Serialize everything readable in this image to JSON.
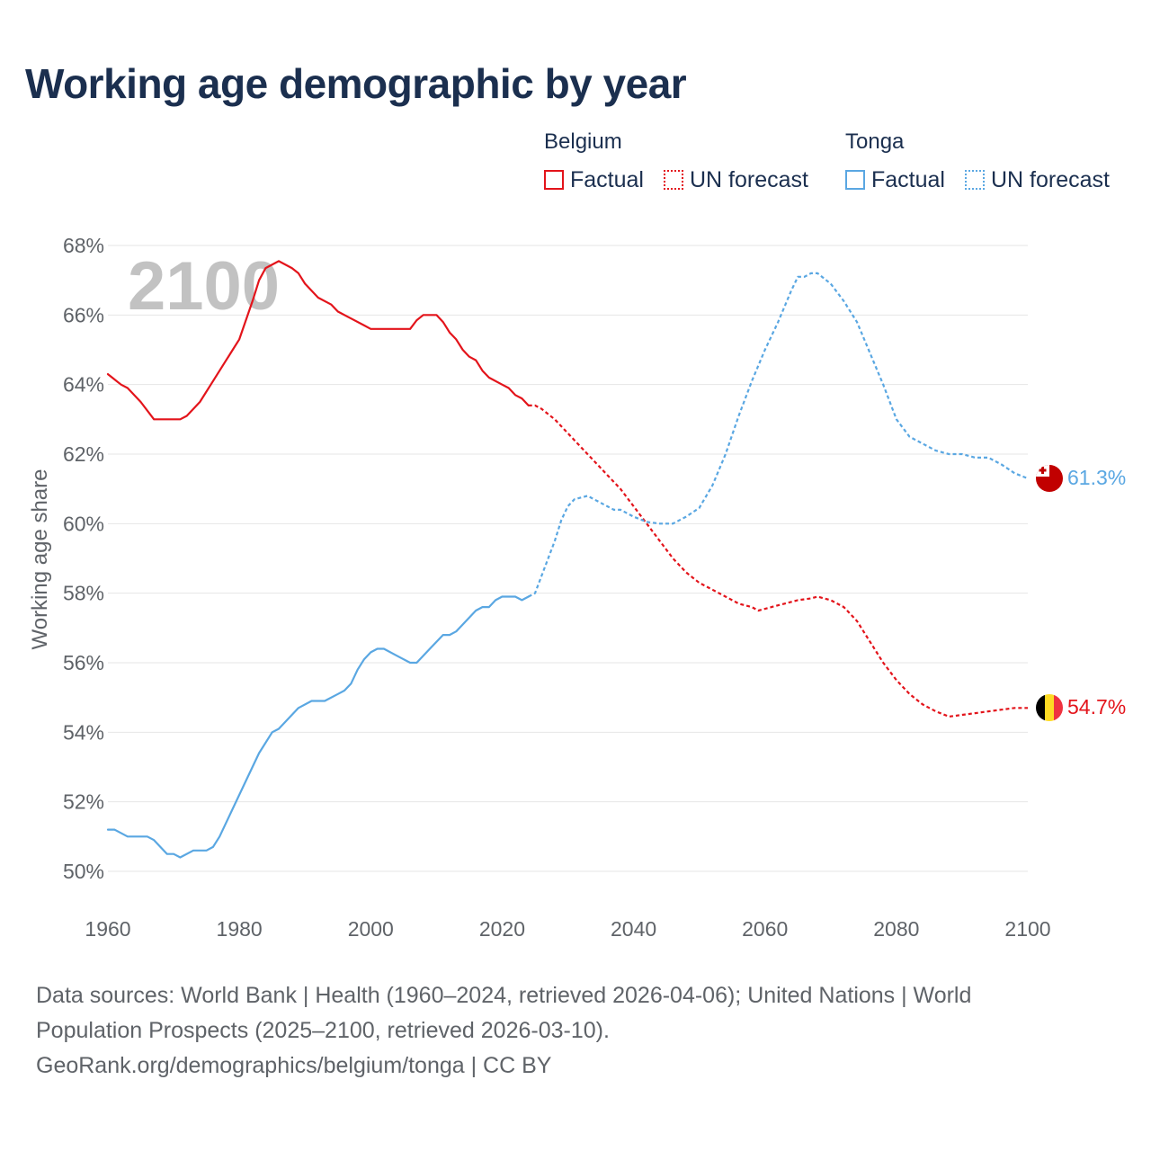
{
  "title": "Working age demographic by year",
  "legend": {
    "belgium": {
      "name": "Belgium",
      "factual": "Factual",
      "forecast": "UN forecast"
    },
    "tonga": {
      "name": "Tonga",
      "factual": "Factual",
      "forecast": "UN forecast"
    }
  },
  "footer": {
    "sources": "Data sources: World Bank | Health (1960–2024, retrieved 2026-04-06); United Nations | World Population Prospects (2025–2100, retrieved 2026-03-10).",
    "link": "GeoRank.org/demographics/belgium/tonga | CC BY"
  },
  "chart_data": {
    "type": "line",
    "title": "Working age demographic by year",
    "ylabel": "Working age share",
    "xlabel": "",
    "year_watermark": "2100",
    "xlim": [
      1960,
      2100
    ],
    "ylim": [
      50,
      68
    ],
    "x_ticks": [
      1960,
      1980,
      2000,
      2020,
      2040,
      2060,
      2080,
      2100
    ],
    "y_ticks": [
      50,
      52,
      54,
      56,
      58,
      60,
      62,
      64,
      66,
      68
    ],
    "y_tick_labels": [
      "50%",
      "52%",
      "54%",
      "56%",
      "58%",
      "60%",
      "62%",
      "64%",
      "66%",
      "68%"
    ],
    "factual_end_year": 2024,
    "series": [
      {
        "name": "Belgium",
        "color": "#e3141b",
        "end_label": "54.7%",
        "flag": "belgium-flag",
        "points": [
          [
            1960,
            64.3
          ],
          [
            1962,
            64.0
          ],
          [
            1963,
            63.9
          ],
          [
            1965,
            63.5
          ],
          [
            1967,
            63.0
          ],
          [
            1969,
            63.0
          ],
          [
            1971,
            63.0
          ],
          [
            1972,
            63.1
          ],
          [
            1974,
            63.5
          ],
          [
            1976,
            64.1
          ],
          [
            1978,
            64.7
          ],
          [
            1980,
            65.3
          ],
          [
            1982,
            66.4
          ],
          [
            1983,
            67.0
          ],
          [
            1984,
            67.35
          ],
          [
            1986,
            67.55
          ],
          [
            1988,
            67.35
          ],
          [
            1989,
            67.2
          ],
          [
            1990,
            66.9
          ],
          [
            1991,
            66.7
          ],
          [
            1992,
            66.5
          ],
          [
            1994,
            66.3
          ],
          [
            1995,
            66.1
          ],
          [
            1997,
            65.9
          ],
          [
            1999,
            65.7
          ],
          [
            2000,
            65.6
          ],
          [
            2002,
            65.6
          ],
          [
            2004,
            65.6
          ],
          [
            2006,
            65.6
          ],
          [
            2007,
            65.85
          ],
          [
            2008,
            66.0
          ],
          [
            2010,
            66.0
          ],
          [
            2011,
            65.8
          ],
          [
            2012,
            65.5
          ],
          [
            2013,
            65.3
          ],
          [
            2014,
            65.0
          ],
          [
            2015,
            64.8
          ],
          [
            2016,
            64.7
          ],
          [
            2017,
            64.4
          ],
          [
            2018,
            64.2
          ],
          [
            2020,
            64.0
          ],
          [
            2021,
            63.9
          ],
          [
            2022,
            63.7
          ],
          [
            2023,
            63.6
          ],
          [
            2024,
            63.4
          ],
          [
            2025,
            63.4
          ],
          [
            2026,
            63.3
          ],
          [
            2028,
            63.0
          ],
          [
            2030,
            62.6
          ],
          [
            2032,
            62.2
          ],
          [
            2034,
            61.8
          ],
          [
            2036,
            61.4
          ],
          [
            2038,
            61.0
          ],
          [
            2040,
            60.5
          ],
          [
            2042,
            60.0
          ],
          [
            2044,
            59.5
          ],
          [
            2046,
            59.0
          ],
          [
            2048,
            58.6
          ],
          [
            2050,
            58.3
          ],
          [
            2052,
            58.1
          ],
          [
            2054,
            57.9
          ],
          [
            2056,
            57.7
          ],
          [
            2058,
            57.6
          ],
          [
            2059,
            57.5
          ],
          [
            2061,
            57.6
          ],
          [
            2063,
            57.7
          ],
          [
            2065,
            57.8
          ],
          [
            2067,
            57.85
          ],
          [
            2068,
            57.9
          ],
          [
            2070,
            57.8
          ],
          [
            2072,
            57.6
          ],
          [
            2074,
            57.2
          ],
          [
            2076,
            56.6
          ],
          [
            2078,
            56.0
          ],
          [
            2080,
            55.5
          ],
          [
            2082,
            55.1
          ],
          [
            2084,
            54.8
          ],
          [
            2086,
            54.6
          ],
          [
            2088,
            54.45
          ],
          [
            2090,
            54.5
          ],
          [
            2092,
            54.55
          ],
          [
            2094,
            54.6
          ],
          [
            2096,
            54.65
          ],
          [
            2098,
            54.7
          ],
          [
            2100,
            54.7
          ]
        ]
      },
      {
        "name": "Tonga",
        "color": "#5aa7e2",
        "end_label": "61.3%",
        "flag": "tonga-flag",
        "points": [
          [
            1960,
            51.2
          ],
          [
            1961,
            51.2
          ],
          [
            1963,
            51.0
          ],
          [
            1965,
            51.0
          ],
          [
            1966,
            51.0
          ],
          [
            1967,
            50.9
          ],
          [
            1969,
            50.5
          ],
          [
            1970,
            50.5
          ],
          [
            1971,
            50.4
          ],
          [
            1973,
            50.6
          ],
          [
            1975,
            50.6
          ],
          [
            1976,
            50.7
          ],
          [
            1977,
            51.0
          ],
          [
            1979,
            51.8
          ],
          [
            1981,
            52.6
          ],
          [
            1983,
            53.4
          ],
          [
            1985,
            54.0
          ],
          [
            1986,
            54.1
          ],
          [
            1988,
            54.5
          ],
          [
            1989,
            54.7
          ],
          [
            1991,
            54.9
          ],
          [
            1993,
            54.9
          ],
          [
            1995,
            55.1
          ],
          [
            1996,
            55.2
          ],
          [
            1997,
            55.4
          ],
          [
            1998,
            55.8
          ],
          [
            1999,
            56.1
          ],
          [
            2000,
            56.3
          ],
          [
            2001,
            56.4
          ],
          [
            2002,
            56.4
          ],
          [
            2004,
            56.2
          ],
          [
            2006,
            56.0
          ],
          [
            2007,
            56.0
          ],
          [
            2009,
            56.4
          ],
          [
            2011,
            56.8
          ],
          [
            2012,
            56.8
          ],
          [
            2013,
            56.9
          ],
          [
            2015,
            57.3
          ],
          [
            2016,
            57.5
          ],
          [
            2017,
            57.6
          ],
          [
            2018,
            57.6
          ],
          [
            2019,
            57.8
          ],
          [
            2020,
            57.9
          ],
          [
            2022,
            57.9
          ],
          [
            2023,
            57.8
          ],
          [
            2024,
            57.9
          ],
          [
            2025,
            58.0
          ],
          [
            2026,
            58.5
          ],
          [
            2027,
            59.0
          ],
          [
            2028,
            59.5
          ],
          [
            2029,
            60.1
          ],
          [
            2030,
            60.5
          ],
          [
            2031,
            60.7
          ],
          [
            2032,
            60.75
          ],
          [
            2033,
            60.8
          ],
          [
            2034,
            60.7
          ],
          [
            2036,
            60.5
          ],
          [
            2037,
            60.4
          ],
          [
            2038,
            60.4
          ],
          [
            2040,
            60.2
          ],
          [
            2042,
            60.05
          ],
          [
            2044,
            60.0
          ],
          [
            2046,
            60.0
          ],
          [
            2048,
            60.2
          ],
          [
            2050,
            60.45
          ],
          [
            2052,
            61.1
          ],
          [
            2054,
            62.0
          ],
          [
            2056,
            63.1
          ],
          [
            2058,
            64.1
          ],
          [
            2060,
            65.0
          ],
          [
            2062,
            65.8
          ],
          [
            2064,
            66.7
          ],
          [
            2065,
            67.1
          ],
          [
            2066,
            67.1
          ],
          [
            2067,
            67.2
          ],
          [
            2068,
            67.2
          ],
          [
            2070,
            66.9
          ],
          [
            2072,
            66.4
          ],
          [
            2074,
            65.8
          ],
          [
            2076,
            64.9
          ],
          [
            2078,
            64.0
          ],
          [
            2080,
            63.0
          ],
          [
            2082,
            62.5
          ],
          [
            2084,
            62.3
          ],
          [
            2086,
            62.1
          ],
          [
            2088,
            62.0
          ],
          [
            2090,
            62.0
          ],
          [
            2092,
            61.9
          ],
          [
            2094,
            61.9
          ],
          [
            2096,
            61.7
          ],
          [
            2098,
            61.45
          ],
          [
            2100,
            61.3
          ]
        ]
      }
    ]
  }
}
